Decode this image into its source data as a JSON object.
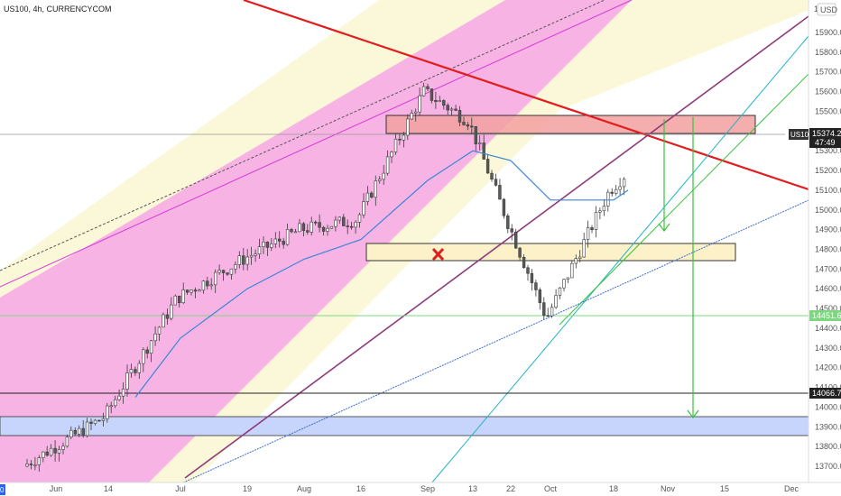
{
  "header": {
    "symbol_line": "US100, 4h, CURRENCYCOM"
  },
  "price_axis": {
    "currency": "USD",
    "current_symbol": "US100",
    "current_price": "15374.2",
    "countdown": "47:49",
    "green_level_label": "14451.6",
    "black_level_label": "14066.7",
    "tick_labels": [
      "15900.0",
      "15800.0",
      "15700.0",
      "15600.0",
      "15500.0",
      "15400.0",
      "15300.0",
      "15200.0",
      "15100.0",
      "15000.0",
      "14900.0",
      "14800.0",
      "14700.0",
      "14600.0",
      "14500.0",
      "14400.0",
      "14300.0",
      "14200.0",
      "14100.0",
      "14000.0",
      "13900.0",
      "13800.0",
      "13700.0"
    ],
    "top_clipped_label": "1"
  },
  "time_axis": {
    "tick_labels": [
      "Jun",
      "14",
      "Jul",
      "19",
      "Aug",
      "16",
      "Sep",
      "13",
      "22",
      "Oct",
      "18",
      "Nov",
      "15",
      "Dec"
    ],
    "left_clipped_label": "0"
  },
  "colors": {
    "candle_up": "#26a69a",
    "candle_down": "#ef5350",
    "candle_body": "#4a4a4a",
    "pink_channel": "#f5a6dc",
    "cream_band": "#fbf8d9",
    "red_trendline": "#e31d1d",
    "purple_trendline": "#8e3b7a",
    "teal_line": "#1fb5c4",
    "blue_line": "#3b6fd1",
    "ma_line": "#3a86d8",
    "green_arrow": "#35c43b",
    "resistance_zone": "#f2a0a0",
    "support_zone": "#fdf1c9",
    "blue_zone": "#c7d4fb",
    "green_level": "#7bd87f",
    "black_level": "#222222",
    "x_marker": "#e31d1d"
  },
  "chart_data": {
    "type": "candlestick",
    "title": "US100, 4h, CURRENCYCOM",
    "xlabel": "",
    "ylabel": "",
    "x_ticks": [
      "Jun",
      "14",
      "Jul",
      "19",
      "Aug",
      "16",
      "Sep",
      "13",
      "22",
      "Oct",
      "18",
      "Nov",
      "15",
      "Dec"
    ],
    "ylim": [
      13650,
      15980
    ],
    "y_ticks": [
      13700,
      13800,
      13900,
      14000,
      14100,
      14200,
      14300,
      14400,
      14500,
      14600,
      14700,
      14800,
      14900,
      15000,
      15100,
      15200,
      15300,
      15400,
      15500,
      15600,
      15700,
      15800,
      15900
    ],
    "price_path": [
      {
        "date": "Jun",
        "close": 13700
      },
      {
        "date": "14",
        "close": 13950
      },
      {
        "date": "Jul",
        "close": 14550
      },
      {
        "date": "19",
        "close": 14750
      },
      {
        "date": "Aug",
        "close": 14900
      },
      {
        "date": "16",
        "close": 14950
      },
      {
        "date": "Sep",
        "close": 15600
      },
      {
        "date": "13",
        "close": 15450
      },
      {
        "date": "22",
        "close": 14950
      },
      {
        "date": "Oct",
        "close": 14450
      },
      {
        "date": "18",
        "close": 15100
      },
      {
        "date": "end",
        "close": 15374
      }
    ],
    "moving_average": [
      {
        "date": "Jul",
        "value": 14350
      },
      {
        "date": "19",
        "value": 14600
      },
      {
        "date": "Aug",
        "value": 14750
      },
      {
        "date": "16",
        "value": 14850
      },
      {
        "date": "Sep",
        "value": 15150
      },
      {
        "date": "13",
        "value": 15300
      },
      {
        "date": "22",
        "value": 15250
      },
      {
        "date": "Oct",
        "value": 15050
      },
      {
        "date": "18",
        "value": 15050
      }
    ],
    "zones": [
      {
        "name": "resistance",
        "from": 15360,
        "to": 15460
      },
      {
        "name": "support",
        "from": 14730,
        "to": 14830
      },
      {
        "name": "lower",
        "from": 13855,
        "to": 13955
      }
    ],
    "levels": [
      {
        "name": "current",
        "value": 15374.2
      },
      {
        "name": "green",
        "value": 14451.6
      },
      {
        "name": "black",
        "value": 14066.7
      }
    ],
    "arrow_targets": [
      14850,
      13955
    ],
    "grid": false
  }
}
